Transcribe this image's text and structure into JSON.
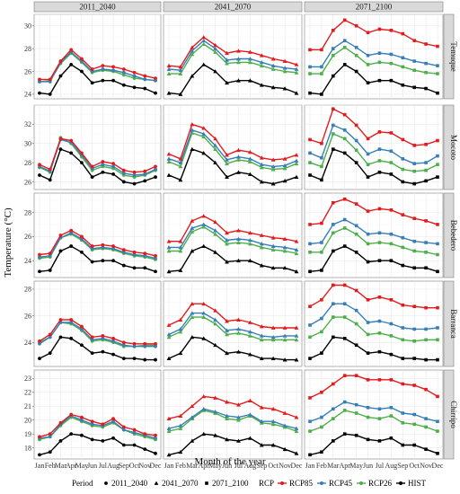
{
  "chart_data": {
    "type": "line",
    "xlabel": "Month of the year",
    "ylabel": "Temperature (°C)",
    "x": [
      "Jan",
      "Feb",
      "Mar",
      "Apr",
      "May",
      "Jun",
      "Jul",
      "Aug",
      "Sep",
      "Oct",
      "Nov",
      "Dec"
    ],
    "col_strips": [
      "2011_2040",
      "2041_2070",
      "2071_2100"
    ],
    "row_strips": [
      "Temuque",
      "Mocoto",
      "Bebedero",
      "Barranca",
      "Chirripo"
    ],
    "legend": {
      "period_title": "Period",
      "period_items": [
        {
          "label": "2011_2040",
          "shape": "circle"
        },
        {
          "label": "2041_2070",
          "shape": "triangle"
        },
        {
          "label": "2071_2100",
          "shape": "square"
        }
      ],
      "rcp_title": "RCP",
      "rcp_items": [
        {
          "label": "RCP85",
          "color": "#e41a1c"
        },
        {
          "label": "RCP45",
          "color": "#377eb8"
        },
        {
          "label": "RCP26",
          "color": "#4daf4a"
        },
        {
          "label": "HIST",
          "color": "#000000"
        }
      ]
    },
    "colors": {
      "RCP85": "#e41a1c",
      "RCP45": "#377eb8",
      "RCP26": "#4daf4a",
      "HIST": "#000000"
    },
    "rows": [
      {
        "station": "Temuque",
        "ylim": [
          23.6,
          31.0
        ],
        "yticks": [
          24,
          26,
          28,
          30
        ],
        "hist": [
          24.1,
          24.0,
          25.6,
          26.6,
          26.0,
          25.0,
          25.2,
          25.2,
          24.8,
          24.6,
          24.5,
          24.1
        ],
        "panels": [
          {
            "period": "2011_2040",
            "RCP85": [
              25.3,
              25.3,
              26.9,
              27.9,
              27.1,
              26.2,
              26.5,
              26.4,
              26.2,
              25.9,
              25.6,
              25.4
            ],
            "RCP45": [
              25.1,
              25.1,
              26.8,
              27.7,
              26.9,
              26.0,
              26.2,
              26.1,
              25.9,
              25.6,
              25.3,
              25.2
            ],
            "RCP26": [
              25.1,
              25.2,
              26.7,
              27.6,
              26.8,
              25.9,
              26.1,
              26.0,
              25.7,
              25.4,
              25.3,
              25.2
            ]
          },
          {
            "period": "2041_2070",
            "RCP85": [
              26.5,
              26.4,
              28.1,
              29.0,
              28.3,
              27.6,
              27.8,
              27.7,
              27.4,
              27.1,
              26.9,
              26.6
            ],
            "RCP45": [
              26.2,
              26.1,
              27.8,
              28.7,
              28.0,
              27.0,
              27.1,
              27.1,
              26.8,
              26.5,
              26.3,
              26.2
            ],
            "RCP26": [
              25.8,
              25.8,
              27.5,
              28.4,
              27.7,
              26.7,
              26.8,
              26.8,
              26.5,
              26.2,
              26.0,
              25.9
            ]
          },
          {
            "period": "2071_2100",
            "RCP85": [
              27.9,
              27.9,
              29.6,
              30.5,
              30.0,
              29.4,
              29.7,
              29.6,
              29.3,
              28.7,
              28.4,
              28.2
            ],
            "RCP45": [
              26.4,
              26.4,
              28.0,
              28.7,
              28.1,
              27.4,
              27.6,
              27.5,
              27.2,
              26.9,
              26.7,
              26.5
            ],
            "RCP26": [
              25.8,
              25.8,
              27.4,
              28.1,
              27.4,
              26.6,
              26.8,
              26.7,
              26.4,
              26.1,
              25.9,
              25.8
            ]
          }
        ]
      },
      {
        "station": "Mocoto",
        "ylim": [
          25.2,
          34.0
        ],
        "yticks": [
          26,
          28,
          30,
          32
        ],
        "hist": [
          26.7,
          26.2,
          29.4,
          29.0,
          28.0,
          26.5,
          27.0,
          26.8,
          26.0,
          25.8,
          26.1,
          26.5
        ],
        "panels": [
          {
            "period": "2011_2040",
            "RCP85": [
              27.8,
              27.3,
              30.5,
              30.3,
              29.0,
              27.6,
              28.1,
              27.9,
              27.2,
              27.0,
              27.1,
              27.6
            ],
            "RCP45": [
              27.6,
              27.1,
              30.4,
              30.1,
              28.8,
              27.4,
              27.8,
              27.6,
              26.9,
              26.7,
              26.8,
              27.3
            ],
            "RCP26": [
              27.5,
              27.0,
              30.6,
              30.0,
              28.6,
              27.2,
              27.6,
              27.4,
              26.7,
              26.5,
              26.7,
              27.2
            ]
          },
          {
            "period": "2041_2070",
            "RCP85": [
              28.9,
              28.4,
              32.0,
              31.6,
              30.5,
              28.8,
              29.3,
              29.1,
              28.5,
              28.3,
              28.4,
              28.8
            ],
            "RCP45": [
              28.4,
              28.0,
              31.4,
              31.0,
              29.8,
              28.3,
              28.6,
              28.4,
              27.8,
              27.6,
              27.7,
              28.2
            ],
            "RCP26": [
              28.1,
              27.6,
              31.1,
              30.7,
              29.4,
              27.9,
              28.3,
              28.1,
              27.5,
              27.3,
              27.4,
              27.9
            ]
          },
          {
            "period": "2071_2100",
            "RCP85": [
              30.4,
              30.0,
              33.6,
              33.0,
              31.9,
              30.5,
              31.2,
              31.1,
              30.4,
              29.8,
              29.9,
              30.3
            ],
            "RCP45": [
              29.0,
              28.5,
              31.9,
              31.4,
              30.3,
              28.9,
              29.4,
              29.2,
              28.4,
              27.9,
              28.0,
              28.7
            ],
            "RCP26": [
              28.0,
              27.6,
              31.0,
              30.5,
              29.3,
              27.8,
              28.2,
              28.0,
              27.3,
              27.1,
              27.2,
              27.8
            ]
          }
        ]
      },
      {
        "station": "Bebedero",
        "ylim": [
          22.6,
          29.6
        ],
        "yticks": [
          24,
          26,
          28
        ],
        "hist": [
          23.1,
          23.2,
          24.8,
          25.2,
          24.7,
          23.9,
          24.0,
          24.0,
          23.6,
          23.4,
          23.4,
          23.1
        ],
        "panels": [
          {
            "period": "2011_2040",
            "RCP85": [
              24.5,
              24.6,
              26.1,
              26.5,
              26.0,
              25.2,
              25.3,
              25.2,
              24.9,
              24.7,
              24.6,
              24.4
            ],
            "RCP45": [
              24.3,
              24.4,
              25.9,
              26.3,
              25.8,
              25.0,
              25.1,
              25.0,
              24.7,
              24.5,
              24.4,
              24.2
            ],
            "RCP26": [
              24.2,
              24.3,
              25.9,
              26.2,
              25.7,
              24.9,
              25.0,
              24.9,
              24.6,
              24.4,
              24.3,
              24.1
            ]
          },
          {
            "period": "2041_2070",
            "RCP85": [
              25.6,
              25.6,
              27.3,
              27.7,
              27.2,
              26.3,
              26.5,
              26.3,
              26.1,
              25.9,
              25.8,
              25.6
            ],
            "RCP45": [
              25.1,
              25.1,
              26.7,
              27.0,
              26.5,
              25.7,
              25.8,
              25.7,
              25.4,
              25.2,
              25.1,
              24.9
            ],
            "RCP26": [
              24.8,
              24.8,
              26.4,
              26.8,
              26.2,
              25.4,
              25.5,
              25.4,
              25.1,
              24.9,
              24.8,
              24.6
            ]
          },
          {
            "period": "2071_2100",
            "RCP85": [
              27.0,
              27.1,
              28.8,
              29.1,
              28.7,
              28.1,
              28.3,
              28.2,
              27.8,
              27.5,
              27.3,
              27.0
            ],
            "RCP45": [
              25.4,
              25.5,
              27.0,
              27.4,
              26.9,
              26.2,
              26.3,
              26.2,
              25.9,
              25.6,
              25.5,
              25.4
            ],
            "RCP26": [
              24.7,
              24.7,
              26.3,
              26.7,
              26.2,
              25.4,
              25.5,
              25.4,
              25.1,
              24.8,
              24.7,
              24.5
            ]
          }
        ]
      },
      {
        "station": "Barranca",
        "ylim": [
          22.2,
          28.6
        ],
        "yticks": [
          24,
          26,
          28
        ],
        "hist": [
          22.8,
          23.2,
          24.4,
          24.3,
          23.8,
          23.2,
          23.3,
          23.1,
          22.8,
          22.8,
          22.7,
          22.7
        ],
        "panels": [
          {
            "period": "2011_2040",
            "RCP85": [
              24.1,
              24.6,
              25.7,
              25.7,
              25.2,
              24.4,
              24.5,
              24.3,
              24.0,
              23.9,
              23.9,
              23.9
            ],
            "RCP45": [
              23.9,
              24.4,
              25.5,
              25.5,
              25.0,
              24.2,
              24.3,
              24.1,
              23.8,
              23.7,
              23.7,
              23.7
            ],
            "RCP26": [
              24.0,
              24.4,
              25.5,
              25.4,
              24.9,
              24.1,
              24.2,
              24.0,
              23.7,
              23.7,
              23.8,
              23.8
            ]
          },
          {
            "period": "2041_2070",
            "RCP85": [
              25.3,
              25.7,
              26.9,
              26.9,
              26.4,
              25.6,
              25.7,
              25.5,
              25.2,
              25.1,
              25.1,
              25.1
            ],
            "RCP45": [
              24.6,
              25.0,
              26.2,
              26.2,
              25.7,
              24.9,
              25.0,
              24.8,
              24.5,
              24.4,
              24.5,
              24.5
            ],
            "RCP26": [
              24.4,
              24.8,
              25.9,
              25.9,
              25.4,
              24.6,
              24.7,
              24.5,
              24.2,
              24.2,
              24.2,
              24.2
            ]
          },
          {
            "period": "2071_2100",
            "RCP85": [
              26.7,
              27.2,
              28.3,
              28.3,
              27.9,
              27.2,
              27.4,
              27.2,
              26.8,
              26.7,
              26.6,
              26.6
            ],
            "RCP45": [
              25.3,
              25.8,
              26.9,
              26.9,
              26.4,
              25.5,
              25.6,
              25.4,
              25.1,
              25.0,
              25.0,
              25.1
            ],
            "RCP26": [
              24.4,
              24.8,
              25.9,
              25.9,
              25.4,
              24.6,
              24.7,
              24.5,
              24.2,
              24.1,
              24.2,
              24.2
            ]
          }
        ]
      },
      {
        "station": "Chirripo",
        "ylim": [
          17.2,
          23.6
        ],
        "yticks": [
          18,
          19,
          20,
          21,
          22,
          23
        ],
        "hist": [
          17.5,
          17.7,
          18.5,
          19.0,
          18.9,
          18.6,
          18.5,
          18.7,
          18.2,
          18.2,
          17.9,
          17.6
        ],
        "panels": [
          {
            "period": "2011_2040",
            "RCP85": [
              18.8,
              19.0,
              19.8,
              20.4,
              20.2,
              19.9,
              19.7,
              20.1,
              19.5,
              19.3,
              19.0,
              18.9
            ],
            "RCP45": [
              18.7,
              18.8,
              19.7,
              20.3,
              20.0,
              19.7,
              19.6,
              19.9,
              19.3,
              19.1,
              18.9,
              18.7
            ],
            "RCP26": [
              18.6,
              18.8,
              19.6,
              20.2,
              19.9,
              19.6,
              19.5,
              19.8,
              19.3,
              19.0,
              18.8,
              18.6
            ]
          },
          {
            "period": "2041_2070",
            "RCP85": [
              20.1,
              20.3,
              21.0,
              21.7,
              21.6,
              21.3,
              21.1,
              21.4,
              20.9,
              20.8,
              20.5,
              20.2
            ],
            "RCP45": [
              19.4,
              19.6,
              20.2,
              20.8,
              20.6,
              20.3,
              20.2,
              20.4,
              19.9,
              19.9,
              19.6,
              19.4
            ],
            "RCP26": [
              19.2,
              19.4,
              20.1,
              20.7,
              20.5,
              20.1,
              20.0,
              20.3,
              19.8,
              19.7,
              19.5,
              19.2
            ]
          },
          {
            "period": "2071_2100",
            "RCP85": [
              21.6,
              22.0,
              22.6,
              23.2,
              23.2,
              22.9,
              22.9,
              22.9,
              22.6,
              22.5,
              22.2,
              21.7
            ],
            "RCP45": [
              19.9,
              20.2,
              20.8,
              21.3,
              21.1,
              20.9,
              20.8,
              20.9,
              20.5,
              20.4,
              20.1,
              19.9
            ],
            "RCP26": [
              19.2,
              19.5,
              20.1,
              20.7,
              20.5,
              20.2,
              20.1,
              20.3,
              19.8,
              19.7,
              19.5,
              19.2
            ]
          }
        ]
      }
    ]
  }
}
